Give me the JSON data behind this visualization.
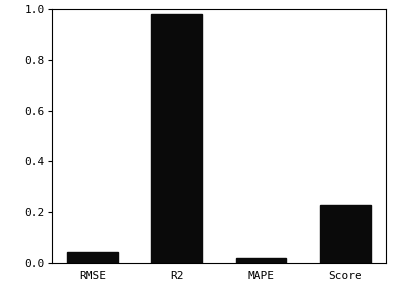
{
  "categories": [
    "RMSE",
    "R2",
    "MAPE",
    "Score"
  ],
  "values": [
    0.045,
    0.98,
    0.02,
    0.23
  ],
  "bar_color": "#0a0a0a",
  "ylim": [
    0,
    1.0
  ],
  "yticks": [
    0.0,
    0.2,
    0.4,
    0.6,
    0.8,
    1.0
  ],
  "background_color": "#ffffff",
  "tick_fontsize": 8,
  "bar_width": 0.6,
  "figsize": [
    3.98,
    2.99
  ],
  "dpi": 100
}
